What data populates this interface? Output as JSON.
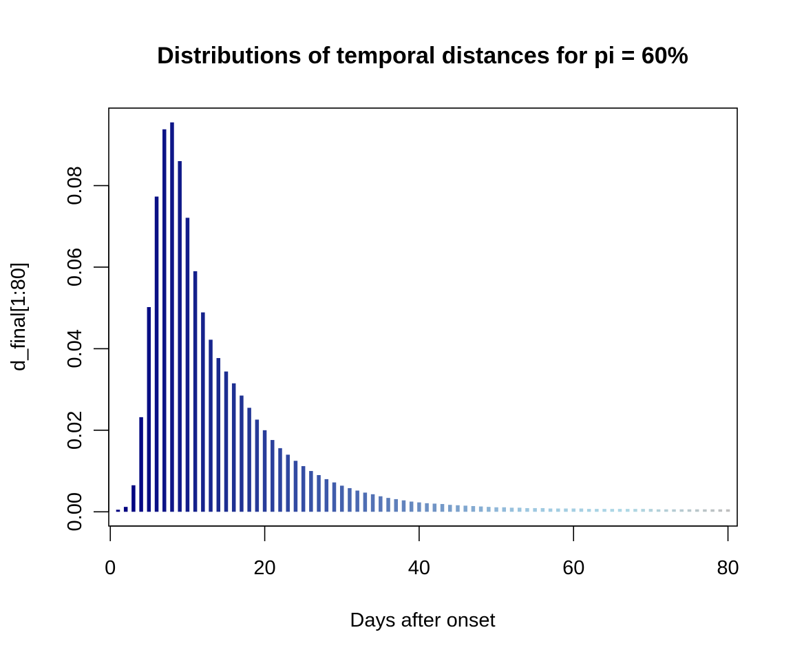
{
  "chart_data": {
    "type": "bar",
    "title": "Distributions of temporal distances for pi = 60%",
    "xlabel": "Days after onset",
    "ylabel": "d_final[1:80]",
    "xlim": [
      -0.2,
      81.2
    ],
    "ylim": [
      -0.0035,
      0.099
    ],
    "x_ticks": [
      0,
      20,
      40,
      60,
      80
    ],
    "y_ticks": [
      0.0,
      0.02,
      0.04,
      0.06,
      0.08
    ],
    "y_tick_labels": [
      "0.00",
      "0.02",
      "0.04",
      "0.06",
      "0.08"
    ],
    "grid": false,
    "legend": "none",
    "color_ramp": [
      "#00007F",
      "#1A2A8F",
      "#3A55A8",
      "#6B8EC2",
      "#9DC7E0",
      "#ADD8E6",
      "#BEBEBE"
    ],
    "x": [
      1,
      2,
      3,
      4,
      5,
      6,
      7,
      8,
      9,
      10,
      11,
      12,
      13,
      14,
      15,
      16,
      17,
      18,
      19,
      20,
      21,
      22,
      23,
      24,
      25,
      26,
      27,
      28,
      29,
      30,
      31,
      32,
      33,
      34,
      35,
      36,
      37,
      38,
      39,
      40,
      41,
      42,
      43,
      44,
      45,
      46,
      47,
      48,
      49,
      50,
      51,
      52,
      53,
      54,
      55,
      56,
      57,
      58,
      59,
      60,
      61,
      62,
      63,
      64,
      65,
      66,
      67,
      68,
      69,
      70,
      71,
      72,
      73,
      74,
      75,
      76,
      77,
      78,
      79,
      80
    ],
    "values": [
      0.0005,
      0.0012,
      0.0065,
      0.0232,
      0.0502,
      0.0773,
      0.0938,
      0.0955,
      0.086,
      0.0721,
      0.059,
      0.0489,
      0.0422,
      0.0377,
      0.0344,
      0.0315,
      0.0285,
      0.0255,
      0.0226,
      0.02,
      0.0176,
      0.0156,
      0.014,
      0.0125,
      0.0112,
      0.01,
      0.009,
      0.008,
      0.0072,
      0.0064,
      0.0058,
      0.0052,
      0.0047,
      0.0043,
      0.0038,
      0.0034,
      0.0031,
      0.0028,
      0.0025,
      0.0023,
      0.0021,
      0.002,
      0.0019,
      0.0017,
      0.0016,
      0.0015,
      0.0014,
      0.0013,
      0.0012,
      0.0011,
      0.0011,
      0.001,
      0.001,
      0.0009,
      0.0009,
      0.0009,
      0.0008,
      0.0008,
      0.0008,
      0.0008,
      0.0008,
      0.0007,
      0.0007,
      0.0007,
      0.0007,
      0.0007,
      0.0007,
      0.0007,
      0.0007,
      0.0007,
      0.0006,
      0.0006,
      0.0006,
      0.0006,
      0.0006,
      0.0006,
      0.0006,
      0.0006,
      0.0006,
      0.0006
    ]
  }
}
